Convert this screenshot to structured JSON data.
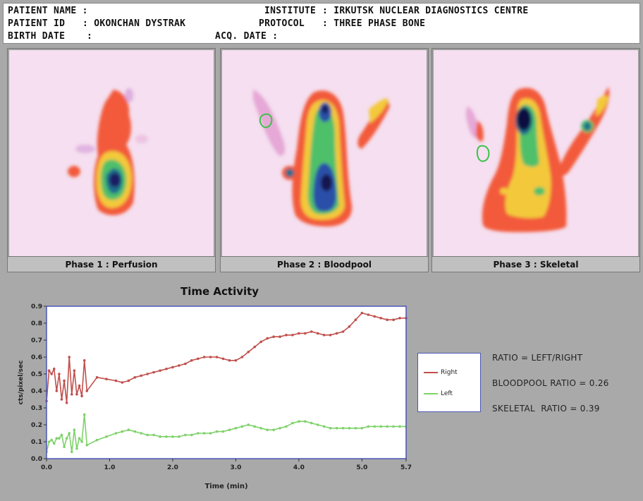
{
  "header": {
    "patient_name_label": "PATIENT NAME :",
    "patient_id_label": "PATIENT ID",
    "patient_id_value": ": OKONCHAN DYSTRAK",
    "birth_date_label": "BIRTH DATE",
    "birth_date_value": ":",
    "institute_label": "INSTITUTE",
    "institute_value": ": IRKUTSK NUCLEAR DIAGNOSTICS CENTRE",
    "protocol_label": "PROTOCOL",
    "protocol_value": ": THREE PHASE BONE",
    "acq_date_label": "ACQ. DATE :"
  },
  "phases": [
    {
      "label": "Phase 1 : Perfusion"
    },
    {
      "label": "Phase 2 : Bloodpool"
    },
    {
      "label": "Phase 3 : Skeletal"
    }
  ],
  "colors": {
    "right": "#c0504d",
    "left": "#7ed26a",
    "frame": "#4b56b8"
  },
  "legend": {
    "right": "Right",
    "left": "Left"
  },
  "ratios": {
    "definition": "RATIO = LEFT/RIGHT",
    "bloodpool": "BLOODPOOL RATIO = 0.26",
    "skeletal": "SKELETAL  RATIO = 0.39"
  },
  "chart_data": {
    "type": "line",
    "title": "Time Activity",
    "xlabel": "Time (min)",
    "ylabel": "cts/pixel/sec",
    "xlim": [
      0,
      5.7
    ],
    "ylim": [
      0,
      0.9
    ],
    "xticks": [
      "0.0",
      "1.0",
      "2.0",
      "3.0",
      "4.0",
      "5.0",
      "5.7"
    ],
    "yticks": [
      "0.0",
      "0.1",
      "0.2",
      "0.3",
      "0.4",
      "0.5",
      "0.6",
      "0.7",
      "0.8",
      "0.9"
    ],
    "grid": false,
    "series": [
      {
        "name": "Right",
        "x": [
          0.0,
          0.04,
          0.08,
          0.12,
          0.16,
          0.2,
          0.24,
          0.28,
          0.32,
          0.36,
          0.4,
          0.44,
          0.48,
          0.52,
          0.56,
          0.6,
          0.64,
          0.8,
          0.95,
          1.1,
          1.2,
          1.3,
          1.4,
          1.5,
          1.6,
          1.7,
          1.8,
          1.9,
          2.0,
          2.1,
          2.2,
          2.3,
          2.4,
          2.5,
          2.6,
          2.7,
          2.8,
          2.9,
          3.0,
          3.1,
          3.2,
          3.3,
          3.4,
          3.5,
          3.6,
          3.7,
          3.8,
          3.9,
          4.0,
          4.1,
          4.2,
          4.3,
          4.4,
          4.5,
          4.6,
          4.7,
          4.8,
          4.9,
          5.0,
          5.1,
          5.2,
          5.3,
          5.4,
          5.5,
          5.6,
          5.7
        ],
        "values": [
          0.34,
          0.52,
          0.5,
          0.53,
          0.4,
          0.5,
          0.35,
          0.46,
          0.33,
          0.6,
          0.38,
          0.52,
          0.38,
          0.43,
          0.37,
          0.58,
          0.4,
          0.48,
          0.47,
          0.46,
          0.45,
          0.46,
          0.48,
          0.49,
          0.5,
          0.51,
          0.52,
          0.53,
          0.54,
          0.55,
          0.56,
          0.58,
          0.59,
          0.6,
          0.6,
          0.6,
          0.59,
          0.58,
          0.58,
          0.6,
          0.63,
          0.66,
          0.69,
          0.71,
          0.72,
          0.72,
          0.73,
          0.73,
          0.74,
          0.74,
          0.75,
          0.74,
          0.73,
          0.73,
          0.74,
          0.75,
          0.78,
          0.82,
          0.86,
          0.85,
          0.84,
          0.83,
          0.82,
          0.82,
          0.83,
          0.83
        ]
      },
      {
        "name": "Left",
        "x": [
          0.0,
          0.04,
          0.08,
          0.12,
          0.16,
          0.2,
          0.24,
          0.28,
          0.32,
          0.36,
          0.4,
          0.44,
          0.48,
          0.52,
          0.56,
          0.6,
          0.64,
          0.8,
          0.95,
          1.1,
          1.2,
          1.3,
          1.4,
          1.5,
          1.6,
          1.7,
          1.8,
          1.9,
          2.0,
          2.1,
          2.2,
          2.3,
          2.4,
          2.5,
          2.6,
          2.7,
          2.8,
          2.9,
          3.0,
          3.1,
          3.2,
          3.3,
          3.4,
          3.5,
          3.6,
          3.7,
          3.8,
          3.9,
          4.0,
          4.1,
          4.2,
          4.3,
          4.4,
          4.5,
          4.6,
          4.7,
          4.8,
          4.9,
          5.0,
          5.1,
          5.2,
          5.3,
          5.4,
          5.5,
          5.6,
          5.7
        ],
        "values": [
          0.04,
          0.1,
          0.11,
          0.09,
          0.12,
          0.12,
          0.14,
          0.07,
          0.12,
          0.15,
          0.04,
          0.17,
          0.06,
          0.12,
          0.1,
          0.26,
          0.08,
          0.11,
          0.13,
          0.15,
          0.16,
          0.17,
          0.16,
          0.15,
          0.14,
          0.14,
          0.13,
          0.13,
          0.13,
          0.13,
          0.14,
          0.14,
          0.15,
          0.15,
          0.15,
          0.16,
          0.16,
          0.17,
          0.18,
          0.19,
          0.2,
          0.19,
          0.18,
          0.17,
          0.17,
          0.18,
          0.19,
          0.21,
          0.22,
          0.22,
          0.21,
          0.2,
          0.19,
          0.18,
          0.18,
          0.18,
          0.18,
          0.18,
          0.18,
          0.19,
          0.19,
          0.19,
          0.19,
          0.19,
          0.19,
          0.19
        ]
      }
    ]
  }
}
